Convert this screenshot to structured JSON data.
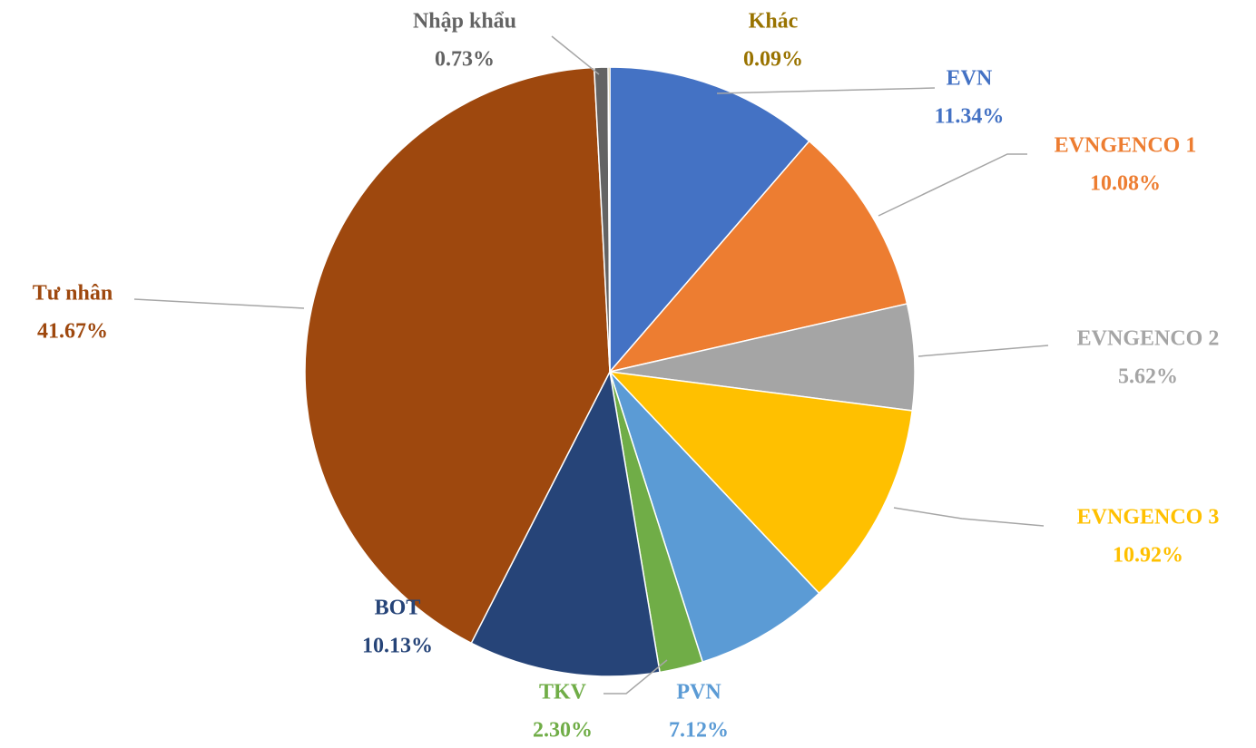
{
  "chart_data": {
    "type": "pie",
    "categories": [
      "EVN",
      "EVNGENCO 1",
      "EVNGENCO 2",
      "EVNGENCO 3",
      "PVN",
      "TKV",
      "BOT",
      "Tư nhân",
      "Nhập khẩu",
      "Khác"
    ],
    "values": [
      11.34,
      10.08,
      5.62,
      10.92,
      7.12,
      2.3,
      10.13,
      41.67,
      0.73,
      0.09
    ],
    "value_labels": [
      "11.34%",
      "10.08%",
      "5.62%",
      "10.92%",
      "7.12%",
      "2.30%",
      "10.13%",
      "41.67%",
      "0.73%",
      "0.09%"
    ],
    "colors": [
      "#4472c4",
      "#ed7d31",
      "#a5a5a5",
      "#ffc000",
      "#5b9bd5",
      "#70ad47",
      "#264478",
      "#9e480e",
      "#636363",
      "#997300"
    ]
  }
}
